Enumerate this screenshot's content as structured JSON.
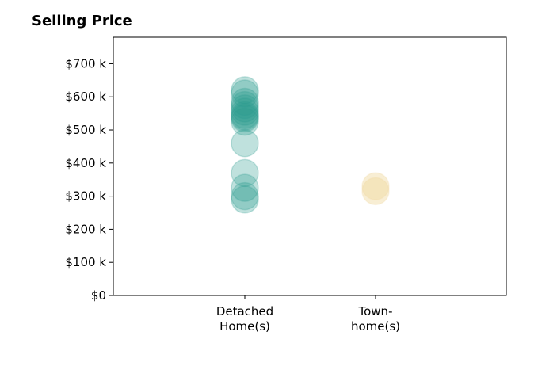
{
  "chart_data": {
    "type": "scatter",
    "title": "Selling Price",
    "xlabel": "",
    "ylabel": "",
    "categories": [
      "Detached\nHome(s)",
      "Town-\nhome(s)"
    ],
    "ylim": [
      0,
      780000
    ],
    "yticks": [
      {
        "value": 0,
        "label": "$0"
      },
      {
        "value": 100000,
        "label": "$100 k"
      },
      {
        "value": 200000,
        "label": "$200 k"
      },
      {
        "value": 300000,
        "label": "$300 k"
      },
      {
        "value": 400000,
        "label": "$400 k"
      },
      {
        "value": 500000,
        "label": "$500 k"
      },
      {
        "value": 600000,
        "label": "$600 k"
      },
      {
        "value": 700000,
        "label": "$700 k"
      }
    ],
    "grid": false,
    "series": [
      {
        "category": "Detached\nHome(s)",
        "color": "#2a9d8f",
        "values": [
          620000,
          610000,
          585000,
          575000,
          565000,
          555000,
          545000,
          540000,
          535000,
          525000,
          460000,
          370000,
          325000,
          300000,
          290000
        ]
      },
      {
        "category": "Town-\nhome(s)",
        "color": "#f0d9a0",
        "values": [
          330000,
          315000
        ]
      }
    ]
  }
}
